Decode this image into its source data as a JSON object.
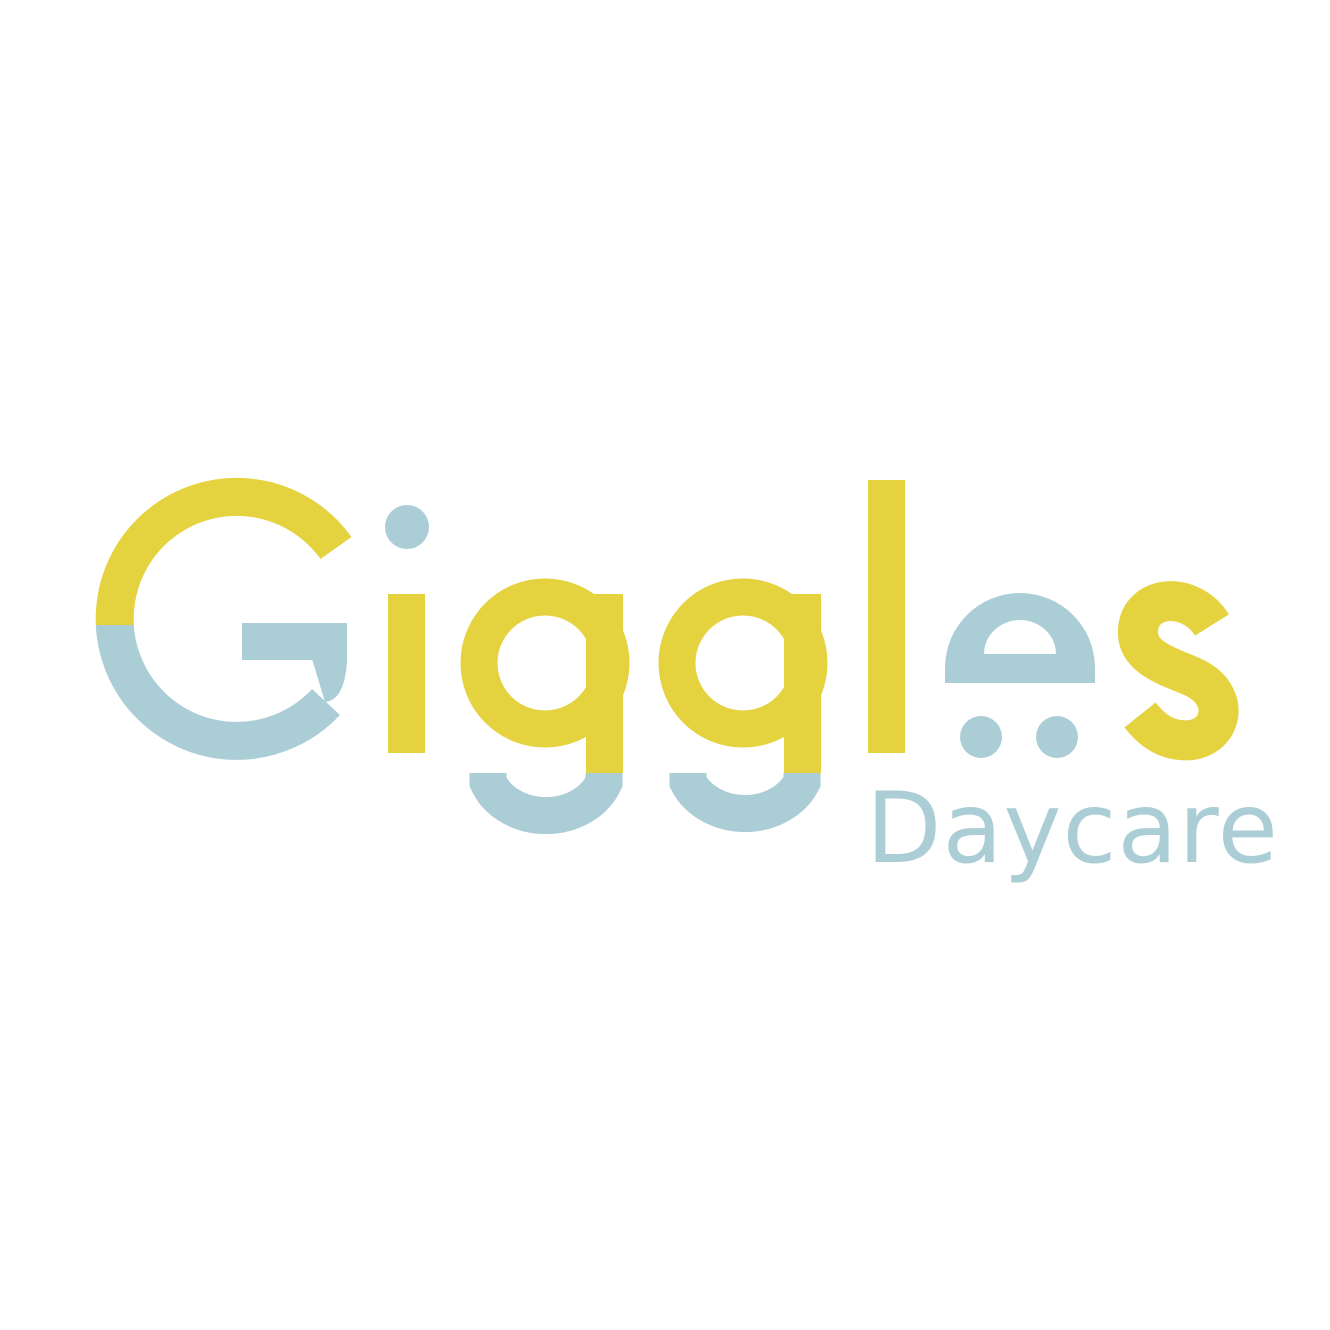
{
  "logo": {
    "wordmark": "Giggles",
    "subtitle": "Daycare",
    "colors": {
      "yellow": "#e4d23f",
      "blue": "#abcdd6",
      "background": "#ffffff"
    }
  }
}
